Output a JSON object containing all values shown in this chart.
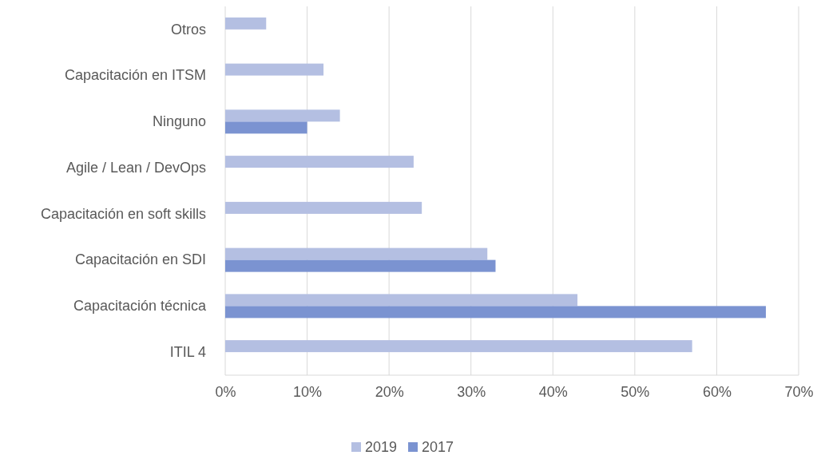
{
  "chart_data": {
    "type": "bar",
    "orientation": "horizontal",
    "categories": [
      "Otros",
      "Capacitación en ITSM",
      "Ninguno",
      "Agile / Lean / DevOps",
      "Capacitación en soft skills",
      "Capacitación en SDI",
      "Capacitación técnica",
      "ITIL 4"
    ],
    "series": [
      {
        "name": "2019",
        "color": "#b4bfe2",
        "values": [
          5,
          12,
          14,
          23,
          24,
          32,
          43,
          57
        ]
      },
      {
        "name": "2017",
        "color": "#7b93d1",
        "values": [
          null,
          null,
          10,
          null,
          null,
          33,
          66,
          null
        ]
      }
    ],
    "xlim": [
      0,
      70
    ],
    "xticks": [
      {
        "value": 0,
        "label": "0%"
      },
      {
        "value": 10,
        "label": "10%"
      },
      {
        "value": 20,
        "label": "20%"
      },
      {
        "value": 30,
        "label": "30%"
      },
      {
        "value": 40,
        "label": "40%"
      },
      {
        "value": 50,
        "label": "50%"
      },
      {
        "value": 60,
        "label": "60%"
      },
      {
        "value": 70,
        "label": "70%"
      }
    ],
    "grid": "x",
    "legend": "bottom"
  }
}
